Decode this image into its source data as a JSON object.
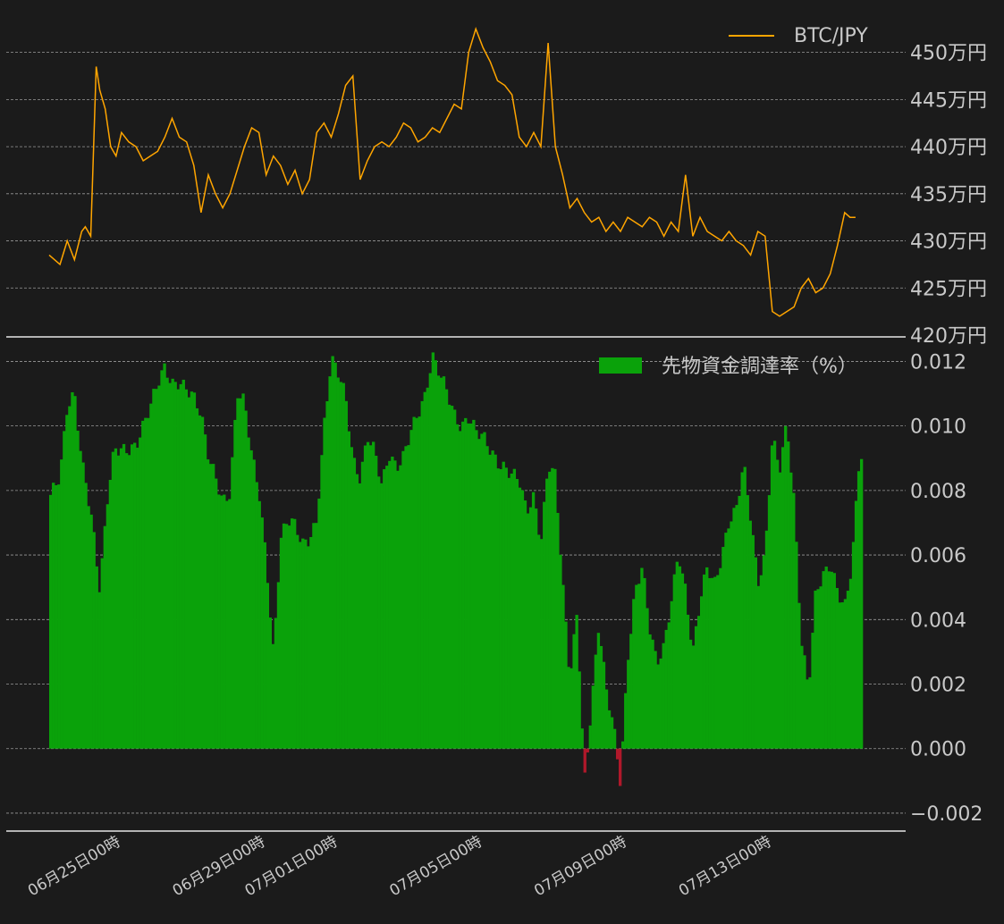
{
  "chart_data": [
    {
      "type": "line",
      "legend": {
        "label": "BTC/JPY",
        "position": "top-right"
      },
      "y_unit_suffix": "万円",
      "ylim": [
        420,
        453
      ],
      "yticks": [
        420,
        425,
        430,
        435,
        440,
        445,
        450
      ],
      "grid": true,
      "color": "#ffa500",
      "x_range_days": [
        0,
        22.5
      ],
      "series": [
        {
          "values_x_days": [
            0.0,
            0.3,
            0.5,
            0.7,
            0.9,
            1.0,
            1.15,
            1.3,
            1.4,
            1.55,
            1.7,
            1.85,
            2.0,
            2.2,
            2.4,
            2.6,
            2.8,
            3.0,
            3.2,
            3.4,
            3.6,
            3.8,
            4.0,
            4.2,
            4.4,
            4.6,
            4.8,
            5.0,
            5.2,
            5.4,
            5.6,
            5.8,
            6.0,
            6.2,
            6.4,
            6.6,
            6.8,
            7.0,
            7.2,
            7.4,
            7.6,
            7.8,
            8.0,
            8.2,
            8.4,
            8.6,
            8.8,
            9.0,
            9.2,
            9.4,
            9.6,
            9.8,
            10.0,
            10.2,
            10.4,
            10.6,
            10.8,
            11.0,
            11.2,
            11.4,
            11.6,
            11.8,
            12.0,
            12.2,
            12.4,
            12.6,
            12.8,
            13.0,
            13.2,
            13.4,
            13.6,
            13.8,
            14.0,
            14.2,
            14.4,
            14.6,
            14.8,
            15.0,
            15.2,
            15.4,
            15.6,
            15.8,
            16.0,
            16.2,
            16.4,
            16.6,
            16.8,
            17.0,
            17.2,
            17.4,
            17.6,
            17.8,
            18.0,
            18.2,
            18.4,
            18.6,
            18.8,
            19.0,
            19.2,
            19.4,
            19.6,
            19.8,
            20.0,
            20.2,
            20.4,
            20.6,
            20.8,
            21.0,
            21.2,
            21.4,
            21.6,
            21.8,
            22.0,
            22.15,
            22.3,
            22.45,
            22.5
          ],
          "values_y": [
            428.5,
            427.5,
            430.0,
            428.0,
            431.0,
            431.5,
            430.5,
            448.5,
            446.0,
            444.0,
            440.0,
            439.0,
            441.5,
            440.5,
            440.0,
            438.5,
            439.0,
            439.5,
            441.0,
            443.0,
            441.0,
            440.5,
            438.0,
            433.0,
            437.0,
            435.0,
            433.5,
            435.0,
            437.5,
            440.0,
            442.0,
            441.5,
            437.0,
            439.0,
            438.0,
            436.0,
            437.5,
            435.0,
            436.5,
            441.5,
            442.5,
            441.0,
            443.5,
            446.5,
            447.5,
            436.5,
            438.5,
            440.0,
            440.5,
            440.0,
            441.0,
            442.5,
            442.0,
            440.5,
            441.0,
            442.0,
            441.5,
            443.0,
            444.5,
            444.0,
            450.0,
            452.5,
            450.5,
            449.0,
            447.0,
            446.5,
            445.5,
            441.0,
            440.0,
            441.5,
            440.0,
            451.0,
            440.0,
            437.0,
            433.5,
            434.5,
            433.0,
            432.0,
            432.5,
            431.0,
            432.0,
            431.0,
            432.5,
            432.0,
            431.5,
            432.5,
            432.0,
            430.5,
            432.0,
            431.0,
            437.0,
            430.5,
            432.5,
            431.0,
            430.5,
            430.0,
            431.0,
            430.0,
            429.5,
            428.5,
            431.0,
            430.5,
            422.5,
            422.0,
            422.5,
            423.0,
            425.0,
            426.0,
            424.5,
            425.0,
            426.5,
            429.5,
            433.0,
            432.5,
            432.5
          ]
        }
      ]
    },
    {
      "type": "bar",
      "legend": {
        "label": "先物資金調達率（%）",
        "position": "top-right"
      },
      "ylim": [
        -0.0025,
        0.0124
      ],
      "yticks": [
        "−0.002",
        "0.000",
        "0.002",
        "0.004",
        "0.006",
        "0.008",
        "0.010",
        "0.012"
      ],
      "ytick_values": [
        -0.002,
        0.0,
        0.002,
        0.004,
        0.006,
        0.008,
        0.01,
        0.012
      ],
      "grid": true,
      "positive_color": "#0aa20a",
      "negative_color": "#b0182a",
      "x_range_days": [
        0,
        22.5
      ],
      "series": [
        {
          "values_x_days": [
            0.0,
            0.3,
            0.5,
            0.7,
            0.9,
            1.0,
            1.2,
            1.4,
            1.6,
            1.8,
            2.0,
            2.2,
            2.4,
            2.6,
            2.8,
            3.0,
            3.2,
            3.4,
            3.6,
            3.8,
            4.0,
            4.2,
            4.4,
            4.6,
            4.8,
            5.0,
            5.2,
            5.4,
            5.6,
            5.8,
            6.0,
            6.2,
            6.4,
            6.6,
            6.8,
            7.0,
            7.2,
            7.4,
            7.6,
            7.8,
            8.0,
            8.2,
            8.4,
            8.6,
            8.8,
            9.0,
            9.2,
            9.4,
            9.6,
            9.8,
            10.0,
            10.2,
            10.4,
            10.6,
            10.8,
            11.0,
            11.2,
            11.4,
            11.6,
            11.8,
            12.0,
            12.2,
            12.4,
            12.6,
            12.8,
            13.0,
            13.2,
            13.4,
            13.6,
            13.8,
            14.0,
            14.2,
            14.4,
            14.6,
            14.8,
            15.0,
            15.2,
            15.4,
            15.6,
            15.8,
            16.0,
            16.2,
            16.4,
            16.6,
            16.8,
            17.0,
            17.2,
            17.4,
            17.6,
            17.8,
            18.0,
            18.2,
            18.4,
            18.6,
            18.8,
            19.0,
            19.2,
            19.4,
            19.6,
            19.8,
            20.0,
            20.2,
            20.4,
            20.6,
            20.8,
            21.0,
            21.2,
            21.4,
            21.6,
            21.8,
            22.0,
            22.2,
            22.4,
            22.5
          ],
          "values_y": [
            0.0078,
            0.0083,
            0.0105,
            0.011,
            0.009,
            0.0085,
            0.007,
            0.0048,
            0.0075,
            0.0092,
            0.0093,
            0.0094,
            0.0095,
            0.01,
            0.0105,
            0.0112,
            0.0118,
            0.0114,
            0.0115,
            0.0112,
            0.0108,
            0.0102,
            0.009,
            0.0085,
            0.0078,
            0.008,
            0.011,
            0.0106,
            0.009,
            0.008,
            0.006,
            0.003,
            0.0065,
            0.007,
            0.0068,
            0.0063,
            0.0066,
            0.0072,
            0.01,
            0.012,
            0.0115,
            0.0108,
            0.009,
            0.0085,
            0.0098,
            0.0092,
            0.008,
            0.009,
            0.0087,
            0.0092,
            0.01,
            0.0104,
            0.0108,
            0.012,
            0.0116,
            0.0112,
            0.0105,
            0.01,
            0.0102,
            0.0097,
            0.0096,
            0.0093,
            0.009,
            0.0088,
            0.0085,
            0.0082,
            0.0072,
            0.0078,
            0.0065,
            0.009,
            0.0085,
            0.005,
            0.002,
            0.0042,
            -0.001,
            0.0015,
            0.004,
            0.0018,
            0.0006,
            -0.0012,
            0.0028,
            0.005,
            0.0058,
            0.0038,
            0.0025,
            0.003,
            0.0045,
            0.0062,
            0.005,
            0.003,
            0.0045,
            0.0055,
            0.005,
            0.006,
            0.0072,
            0.0075,
            0.0088,
            0.007,
            0.005,
            0.006,
            0.0098,
            0.0088,
            0.0101,
            0.0075,
            0.0032,
            0.0018,
            0.005,
            0.0055,
            0.0058,
            0.0048,
            0.0042,
            0.0056,
            0.009,
            0.0093
          ]
        }
      ]
    }
  ],
  "x_axis": {
    "day_offsets": [
      2.0,
      6.0,
      8.0,
      12.0,
      16.0,
      20.0
    ],
    "tick_labels": [
      "06月25日00時",
      "06月29日00時",
      "07月01日00時",
      "07月05日00時",
      "07月09日00時",
      "07月13日00時"
    ]
  }
}
